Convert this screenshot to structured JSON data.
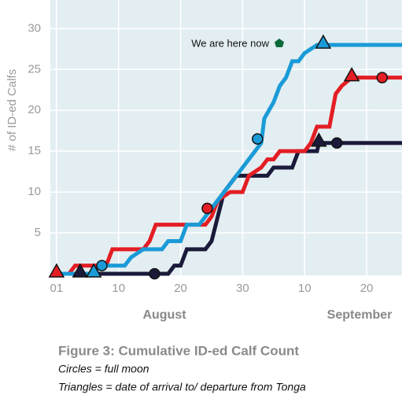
{
  "chart_data": {
    "type": "line",
    "y_label": "# of ID-ed Calfs",
    "annotation": "We are here now",
    "month_labels": [
      "August",
      "September"
    ],
    "caption_title": "Figure 3: Cumulative ID-ed Calf Count",
    "caption_lines": [
      "Circles = full moon",
      "Triangles = date of arrival to/ departure from Tonga"
    ],
    "xlim": [
      -1,
      55.7
    ],
    "ylim": [
      0,
      33.5
    ],
    "xticks": [
      {
        "value": 0,
        "label": "01"
      },
      10,
      20,
      30,
      {
        "value": 40,
        "label": "10"
      },
      {
        "value": 50,
        "label": "20"
      }
    ],
    "yticks": [
      5,
      10,
      15,
      20,
      25,
      30
    ],
    "grid": true,
    "series": [
      {
        "color": "#1b1a3a",
        "x": [
          0,
          18,
          19,
          20,
          21,
          24,
          25,
          26,
          27,
          28,
          29,
          34,
          35,
          38,
          39,
          42,
          42.3,
          55.7
        ],
        "values": [
          0,
          0,
          1,
          1,
          3,
          3,
          4,
          7,
          10,
          11,
          12,
          12,
          13,
          13,
          15,
          15,
          16,
          16
        ],
        "circle_x": [
          15.8,
          45.2
        ],
        "circle_y": [
          0,
          16
        ],
        "triangle_x": [
          3.8,
          42.3
        ],
        "triangle_y": [
          0,
          16
        ]
      },
      {
        "color": "#e31e24",
        "x": [
          0,
          2,
          3,
          8,
          9,
          14,
          15,
          16,
          24,
          25,
          26,
          28,
          30,
          31,
          33,
          34,
          35,
          36,
          40,
          41,
          42,
          44,
          45,
          46,
          47.6,
          55.7
        ],
        "values": [
          0,
          0,
          1,
          1,
          3,
          3,
          4,
          6,
          6,
          7,
          9,
          10,
          10,
          12,
          13,
          14,
          14,
          15,
          15,
          16,
          18,
          18,
          22,
          23,
          24,
          24
        ],
        "circle_x": [
          24.3,
          52.5
        ],
        "circle_y": [
          8,
          24
        ],
        "triangle_x": [
          0,
          47.6
        ],
        "triangle_y": [
          0,
          24
        ]
      },
      {
        "color": "#1a9bd7",
        "x": [
          0,
          6,
          7,
          11,
          12,
          14,
          17,
          18,
          20,
          21,
          23,
          24,
          26,
          28,
          29,
          32,
          33,
          33.5,
          35,
          36,
          37,
          38,
          39,
          40,
          42,
          43,
          55.7
        ],
        "values": [
          0,
          0,
          1,
          1,
          2,
          3,
          3,
          4,
          4,
          6,
          6,
          7,
          9,
          11,
          12,
          15,
          16,
          19,
          21,
          23,
          24,
          26,
          26,
          27,
          28,
          28,
          28
        ],
        "circle_x": [
          7.3,
          32.4
        ],
        "circle_y": [
          1,
          16.5
        ],
        "triangle_x": [
          6,
          43
        ],
        "triangle_y": [
          0,
          28
        ]
      }
    ]
  }
}
